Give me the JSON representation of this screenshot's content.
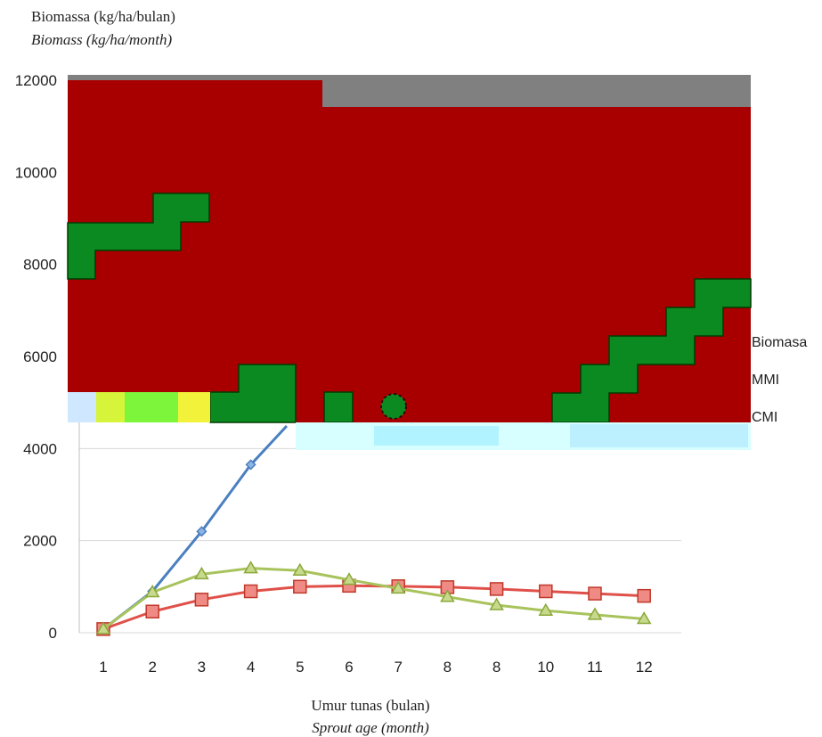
{
  "chart_data": {
    "type": "line",
    "ylabel_lines": [
      "Biomassa (kg/ha/bulan)",
      "Biomass (kg/ha/month)"
    ],
    "xlabel_lines": [
      "Umur tunas (bulan)",
      "Sprout age (month)"
    ],
    "categories": [
      "1",
      "2",
      "3",
      "4",
      "5",
      "6",
      "7",
      "8",
      "8",
      "10",
      "11",
      "12"
    ],
    "ylim": [
      0,
      12000
    ],
    "yticks": [
      0,
      2000,
      4000,
      6000,
      8000,
      10000,
      12000
    ],
    "ytick_labels": [
      "0",
      "2000",
      "4000",
      "6000",
      "8000",
      "10000",
      "12000"
    ],
    "grid": true,
    "legend_position": "right",
    "series": [
      {
        "name": "Biomasa",
        "color": "#4a7fc0",
        "marker": "diamond",
        "values": [
          80,
          900,
          2200,
          3650,
          4800,
          null,
          null,
          null,
          null,
          null,
          null,
          null
        ]
      },
      {
        "name": "MMI",
        "color": "#e0504a",
        "marker": "square",
        "values": [
          80,
          460,
          720,
          900,
          1000,
          1020,
          1010,
          990,
          950,
          900,
          850,
          800
        ]
      },
      {
        "name": "CMI",
        "color": "#a8c35c",
        "marker": "triangle",
        "values": [
          80,
          880,
          1270,
          1400,
          1350,
          1150,
          960,
          780,
          600,
          480,
          390,
          300
        ]
      }
    ]
  },
  "colors": {
    "occlusion_red": "#a80000",
    "occlusion_green": "#0b8a22",
    "occlusion_grey": "#808080"
  }
}
